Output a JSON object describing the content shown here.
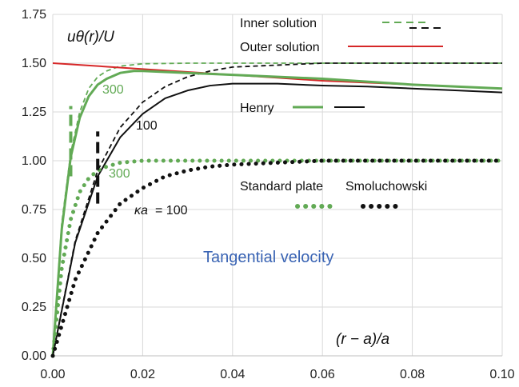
{
  "chart_data": {
    "type": "line",
    "title": "",
    "xlabel": "(r − a)/a",
    "ylabel": "uθ(r)/U",
    "xlim": [
      0,
      0.1
    ],
    "ylim": [
      0,
      1.75
    ],
    "xticks": [
      "0.00",
      "0.02",
      "0.04",
      "0.06",
      "0.08",
      "0.10"
    ],
    "yticks": [
      "0.00",
      "0.25",
      "0.50",
      "0.75",
      "1.00",
      "1.25",
      "1.50",
      "1.75"
    ],
    "grid": true,
    "colors": {
      "green": "#62aa55",
      "black": "#111111",
      "red": "#d62728"
    },
    "legend": {
      "inner": "Inner solution",
      "outer": "Outer solution",
      "henry": "Henry",
      "standard_plate": "Standard plate",
      "smoluchowski": "Smoluchowski"
    },
    "annotations": {
      "ylabel_text": "uθ(r)/U",
      "xlabel_text": "(r − a)/a",
      "tangential": "Tangential velocity",
      "green_300_top": "300",
      "black_100": "100",
      "green_300_dot": "300",
      "ka_prefix": "κa",
      "ka_value": "= 100"
    },
    "series": [
      {
        "name": "Inner solution",
        "label": "300",
        "color": "#62aa55",
        "style": "dashed",
        "x": [
          0,
          0.002,
          0.004,
          0.006,
          0.008,
          0.01,
          0.012,
          0.015,
          0.02,
          0.03,
          0.04,
          0.06,
          0.08,
          0.1
        ],
        "y": [
          0,
          0.68,
          1.04,
          1.25,
          1.37,
          1.43,
          1.46,
          1.485,
          1.497,
          1.5,
          1.5,
          1.5,
          1.5,
          1.5
        ]
      },
      {
        "name": "Inner solution",
        "label": "100",
        "color": "#111111",
        "style": "dashed",
        "x": [
          0,
          0.005,
          0.01,
          0.015,
          0.02,
          0.025,
          0.03,
          0.035,
          0.04,
          0.05,
          0.06,
          0.08,
          0.1
        ],
        "y": [
          0,
          0.59,
          0.95,
          1.17,
          1.3,
          1.38,
          1.43,
          1.46,
          1.48,
          1.49,
          1.5,
          1.5,
          1.5
        ]
      },
      {
        "name": "Outer solution",
        "color": "#d62728",
        "style": "solid",
        "x": [
          0,
          0.01,
          0.02,
          0.03,
          0.04,
          0.05,
          0.06,
          0.07,
          0.08,
          0.09,
          0.1
        ],
        "y": [
          1.5,
          1.485,
          1.47,
          1.455,
          1.44,
          1.425,
          1.41,
          1.4,
          1.39,
          1.38,
          1.37
        ]
      },
      {
        "name": "Henry",
        "label": "300",
        "color": "#62aa55",
        "style": "solid",
        "x": [
          0,
          0.002,
          0.004,
          0.006,
          0.008,
          0.01,
          0.012,
          0.015,
          0.018,
          0.02,
          0.03,
          0.04,
          0.06,
          0.08,
          0.1
        ],
        "y": [
          0,
          0.65,
          1.02,
          1.22,
          1.33,
          1.39,
          1.42,
          1.45,
          1.46,
          1.46,
          1.45,
          1.44,
          1.42,
          1.39,
          1.37
        ]
      },
      {
        "name": "Henry",
        "label": "100",
        "color": "#111111",
        "style": "solid",
        "x": [
          0,
          0.005,
          0.01,
          0.015,
          0.02,
          0.025,
          0.03,
          0.035,
          0.04,
          0.05,
          0.06,
          0.07,
          0.08,
          0.09,
          0.1
        ],
        "y": [
          0,
          0.58,
          0.92,
          1.12,
          1.24,
          1.32,
          1.36,
          1.385,
          1.395,
          1.395,
          1.385,
          1.38,
          1.37,
          1.36,
          1.35
        ]
      },
      {
        "name": "Standard plate",
        "label": "300",
        "color": "#62aa55",
        "style": "dotted",
        "x": [
          0,
          0.002,
          0.004,
          0.006,
          0.008,
          0.01,
          0.012,
          0.015,
          0.02,
          0.03,
          0.04,
          0.06,
          0.08,
          0.1
        ],
        "y": [
          0,
          0.45,
          0.7,
          0.84,
          0.91,
          0.95,
          0.97,
          0.99,
          1.0,
          1.0,
          1.0,
          1.0,
          1.0,
          1.0
        ]
      },
      {
        "name": "Smoluchowski",
        "label": "100",
        "color": "#111111",
        "style": "dotted",
        "x": [
          0,
          0.005,
          0.01,
          0.015,
          0.02,
          0.025,
          0.03,
          0.035,
          0.04,
          0.05,
          0.06,
          0.08,
          0.1
        ],
        "y": [
          0,
          0.39,
          0.63,
          0.78,
          0.86,
          0.92,
          0.95,
          0.97,
          0.98,
          0.99,
          1.0,
          1.0,
          1.0
        ]
      }
    ],
    "markers": [
      {
        "color": "#62aa55",
        "x": 0.004,
        "y": [
          0.92,
          1.28
        ]
      },
      {
        "color": "#111111",
        "x": 0.01,
        "y": [
          0.78,
          1.15
        ]
      }
    ]
  }
}
